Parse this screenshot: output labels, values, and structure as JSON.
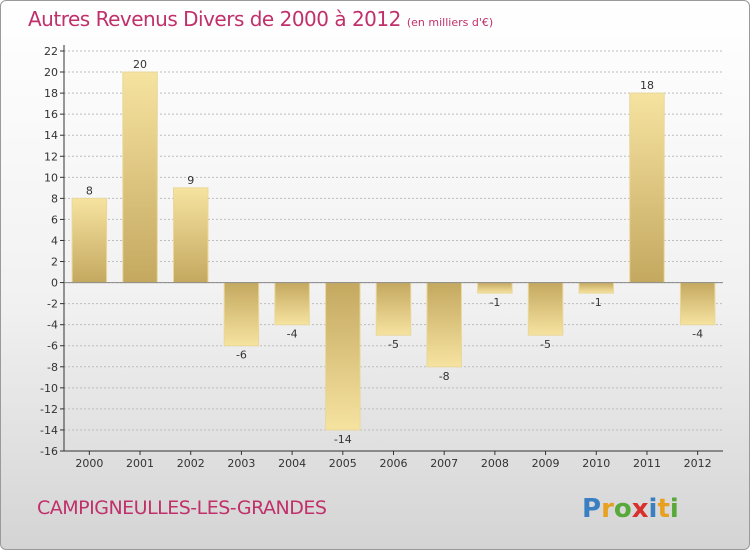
{
  "title": "Autres Revenus Divers de 2000 à 2012",
  "subtitle": "(en milliers d'€)",
  "location": "CAMPIGNEULLES-LES-GRANDES",
  "logo_text": "Proxiti",
  "colors": {
    "accent": "#c0306a",
    "bar_light": "#f6e3a0",
    "bar_dark": "#c4a860",
    "axis": "#333333",
    "grid": "#bdbdbd"
  },
  "chart_data": {
    "type": "bar",
    "categories": [
      "2000",
      "2001",
      "2002",
      "2003",
      "2004",
      "2005",
      "2006",
      "2007",
      "2008",
      "2009",
      "2010",
      "2011",
      "2012"
    ],
    "values": [
      8,
      20,
      9,
      -6,
      -4,
      -14,
      -5,
      -8,
      -1,
      -5,
      -1,
      18,
      -4
    ],
    "data_labels": [
      "8",
      "20",
      "9",
      "-6",
      "-4",
      "-14",
      "-5",
      "-8",
      "-1",
      "-5",
      "-1",
      "18",
      "-4"
    ],
    "title": "Autres Revenus Divers de 2000 à 2012",
    "subtitle": "(en milliers d'€)",
    "xlabel": "",
    "ylabel": "",
    "ylim": [
      -16,
      22
    ],
    "yticks": [
      -16,
      -14,
      -12,
      -10,
      -8,
      -6,
      -4,
      -2,
      0,
      2,
      4,
      6,
      8,
      10,
      12,
      14,
      16,
      18,
      20,
      22
    ],
    "grid": "horizontal"
  }
}
